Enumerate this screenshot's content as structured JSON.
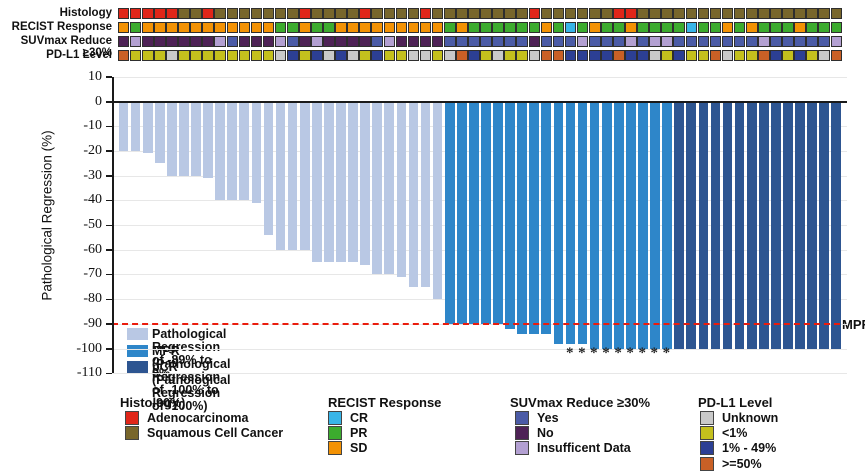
{
  "tracks": {
    "rows": [
      {
        "label": "Histology",
        "palette": {
          "A": "#e02619",
          "S": "#78662b"
        },
        "cells": "AAAAASSASSSSSSSASSSSASSSSASSSSSSSSASSSSSSAASSSSSSSSSSSSSSSSS"
      },
      {
        "label": "RECIST Response",
        "palette": {
          "C": "#38b5e8",
          "P": "#3cab2e",
          "S": "#f39204"
        },
        "cells": "SPSSSSSSSSSSSPPSPPSSSSSSSSSPSPPPPPPSPCPSPPSPPPPCPPSPSPPPSPPP"
      },
      {
        "label": "SUVmax Reduce ≥30%",
        "palette": {
          "Y": "#4b5ba6",
          "N": "#4e2256",
          "I": "#b3a0d2"
        },
        "cells": "NINNNNNNIYNNNIYNINNNNYINNNNYYYYYYYNYYYIYYYIYIIYYYYYYYIYYYYYI"
      },
      {
        "label": "PD-L1 Level",
        "palette": {
          "U": "#c9c9c9",
          "L": "#c4c01d",
          "M": "#2c3f94",
          "H": "#c96026"
        },
        "cells": "HLLLULLLLLLLLUMLMUMULMLLUULUHMLULLUHHMMMMHMMULMLLHULLHMLMLUH"
      }
    ]
  },
  "chart_data": {
    "type": "bar",
    "title": "",
    "xlabel": "",
    "ylabel": "Pathological Regression (%)",
    "ylim": [
      -110,
      10
    ],
    "yticks": [
      10,
      0,
      -10,
      -20,
      -30,
      -40,
      -50,
      -60,
      -70,
      -80,
      -90,
      -100,
      -110
    ],
    "grid": "horizontal-light",
    "categories_note": "60 patients, unlabeled x axis, sorted by regression",
    "values": [
      -20,
      -20,
      -21,
      -25,
      -30,
      -30,
      -30,
      -31,
      -40,
      -40,
      -40,
      -41,
      -54,
      -60,
      -60,
      -60,
      -65,
      -65,
      -65,
      -65,
      -66,
      -70,
      -70,
      -71,
      -75,
      -75,
      -80,
      -90,
      -90,
      -90,
      -90,
      -90,
      -92,
      -94,
      -94,
      -94,
      -98,
      -98,
      -98,
      -100,
      -100,
      -100,
      -100,
      -100,
      -100,
      -100,
      -100,
      -100,
      -100,
      -100,
      -100,
      -100,
      -100,
      -100,
      -100,
      -100,
      -100,
      -100,
      -100,
      -100
    ],
    "class_string": "PPPPPPPPPPPPPPPPPPPPPPPPPPPMMMMMMMMMMMMMMMMMMMCCCCCCCCCCCCCC",
    "asterisk_columns": [
      38,
      39,
      40,
      41,
      42,
      43,
      44,
      45,
      46
    ],
    "asterisk_glyph": "*",
    "mpr_line": {
      "y": -90,
      "label": "MPR",
      "color": "#ea1c0d"
    },
    "legend": [
      {
        "key": "P",
        "label": "Pathological Regression of -89% to 0%",
        "color": "#b9c8e4"
      },
      {
        "key": "M",
        "label": "MPR (Pathological Regression of -100% to -90%)",
        "color": "#2e86c9"
      },
      {
        "key": "C",
        "label": "pCR (Pathological Regression of -100%)",
        "color": "#2d5591"
      }
    ]
  },
  "track_legends": [
    {
      "title": "Histology",
      "items": [
        {
          "label": "Adenocarcinoma",
          "color": "#e02619"
        },
        {
          "label": "Squamous Cell Cancer",
          "color": "#78662b"
        }
      ]
    },
    {
      "title": "RECIST Response",
      "items": [
        {
          "label": "CR",
          "color": "#38b5e8"
        },
        {
          "label": "PR",
          "color": "#3cab2e"
        },
        {
          "label": "SD",
          "color": "#f39204"
        }
      ]
    },
    {
      "title": "SUVmax Reduce ≥30%",
      "items": [
        {
          "label": "Yes",
          "color": "#4b5ba6"
        },
        {
          "label": "No",
          "color": "#4e2256"
        },
        {
          "label": "Insufficent Data",
          "color": "#b3a0d2"
        }
      ]
    },
    {
      "title": "PD-L1 Level",
      "items": [
        {
          "label": "Unknown",
          "color": "#c9c9c9"
        },
        {
          "label": "<1%",
          "color": "#c4c01d"
        },
        {
          "label": "1% - 49%",
          "color": "#2c3f94"
        },
        {
          "label": ">=50%",
          "color": "#c96026"
        }
      ]
    }
  ]
}
